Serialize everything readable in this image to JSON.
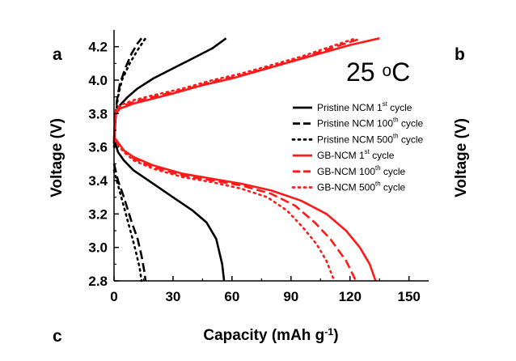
{
  "chart_data": {
    "type": "line",
    "title": "",
    "annotation": {
      "main": "25 ",
      "sup": "o",
      "tail": "C"
    },
    "panel_labels": {
      "a": "a",
      "b": "b",
      "c": "c"
    },
    "xlabel": {
      "main": "Capacity (mAh g",
      "sup": "-1",
      "tail": ")"
    },
    "ylabel": "Voltage (V)",
    "ylabel_right": "Voltage (V)",
    "xlim": [
      0,
      160
    ],
    "ylim": [
      2.8,
      4.3
    ],
    "x_ticks": [
      0,
      30,
      60,
      90,
      120,
      150
    ],
    "y_ticks": [
      2.8,
      3.0,
      3.2,
      3.4,
      3.6,
      3.8,
      4.0,
      4.2
    ],
    "x_tick_labels": [
      "0",
      "30",
      "60",
      "90",
      "120",
      "150"
    ],
    "y_tick_labels": [
      "2.8",
      "3.0",
      "3.2",
      "3.4",
      "3.6",
      "3.8",
      "4.0",
      "4.2"
    ],
    "grid": false,
    "legend_position": "right",
    "series": [
      {
        "name": {
          "main": "Pristine NCM 1",
          "sup": "st",
          "tail": " cycle"
        },
        "color": "#000000",
        "dash": "solid",
        "charge": [
          [
            0,
            3.62
          ],
          [
            0.5,
            3.72
          ],
          [
            1,
            3.8
          ],
          [
            3,
            3.85
          ],
          [
            7,
            3.9
          ],
          [
            12,
            3.95
          ],
          [
            20,
            4.01
          ],
          [
            30,
            4.07
          ],
          [
            40,
            4.13
          ],
          [
            50,
            4.19
          ],
          [
            57,
            4.25
          ]
        ],
        "discharge": [
          [
            0,
            3.65
          ],
          [
            2,
            3.57
          ],
          [
            5,
            3.52
          ],
          [
            10,
            3.46
          ],
          [
            20,
            3.38
          ],
          [
            30,
            3.3
          ],
          [
            40,
            3.22
          ],
          [
            47,
            3.15
          ],
          [
            52,
            3.05
          ],
          [
            55,
            2.9
          ],
          [
            56,
            2.8
          ]
        ]
      },
      {
        "name": {
          "main": "Pristine NCM 100",
          "sup": "th",
          "tail": " cycle"
        },
        "color": "#000000",
        "dash": "dash",
        "charge": [
          [
            0,
            3.62
          ],
          [
            0.5,
            3.76
          ],
          [
            1.5,
            3.88
          ],
          [
            3,
            3.98
          ],
          [
            6,
            4.08
          ],
          [
            9,
            4.16
          ],
          [
            12,
            4.22
          ],
          [
            14,
            4.25
          ]
        ],
        "discharge": [
          [
            0,
            3.5
          ],
          [
            2,
            3.4
          ],
          [
            5,
            3.3
          ],
          [
            9,
            3.15
          ],
          [
            12,
            3.05
          ],
          [
            14,
            2.95
          ],
          [
            15.5,
            2.85
          ],
          [
            16,
            2.8
          ]
        ]
      },
      {
        "name": {
          "main": "Pristine NCM 500",
          "sup": "th",
          "tail": " cycle"
        },
        "color": "#000000",
        "dash": "dot",
        "charge": [
          [
            0,
            3.6
          ],
          [
            0.5,
            3.75
          ],
          [
            2,
            3.9
          ],
          [
            4,
            4.0
          ],
          [
            8,
            4.1
          ],
          [
            12,
            4.18
          ],
          [
            16,
            4.25
          ]
        ],
        "discharge": [
          [
            0,
            3.46
          ],
          [
            3,
            3.33
          ],
          [
            6,
            3.2
          ],
          [
            9,
            3.07
          ],
          [
            11,
            2.98
          ],
          [
            13,
            2.88
          ],
          [
            14,
            2.8
          ]
        ]
      },
      {
        "name": {
          "main": "GB-NCM 1",
          "sup": "st",
          "tail": " cycle"
        },
        "color": "#ff1a1a",
        "dash": "solid",
        "charge": [
          [
            0,
            3.65
          ],
          [
            0.5,
            3.75
          ],
          [
            1,
            3.8
          ],
          [
            3,
            3.83
          ],
          [
            10,
            3.86
          ],
          [
            20,
            3.89
          ],
          [
            30,
            3.92
          ],
          [
            45,
            3.97
          ],
          [
            60,
            4.01
          ],
          [
            75,
            4.06
          ],
          [
            90,
            4.11
          ],
          [
            105,
            4.16
          ],
          [
            120,
            4.21
          ],
          [
            135,
            4.25
          ]
        ],
        "discharge": [
          [
            0,
            3.66
          ],
          [
            5,
            3.58
          ],
          [
            10,
            3.54
          ],
          [
            20,
            3.49
          ],
          [
            35,
            3.44
          ],
          [
            50,
            3.41
          ],
          [
            65,
            3.38
          ],
          [
            80,
            3.34
          ],
          [
            95,
            3.28
          ],
          [
            108,
            3.2
          ],
          [
            118,
            3.1
          ],
          [
            125,
            3.0
          ],
          [
            130,
            2.9
          ],
          [
            133,
            2.8
          ]
        ]
      },
      {
        "name": {
          "main": "GB-NCM 100",
          "sup": "th",
          "tail": " cycle"
        },
        "color": "#ff1a1a",
        "dash": "dash",
        "charge": [
          [
            0,
            3.65
          ],
          [
            0.5,
            3.76
          ],
          [
            1,
            3.81
          ],
          [
            3,
            3.84
          ],
          [
            10,
            3.87
          ],
          [
            20,
            3.9
          ],
          [
            35,
            3.94
          ],
          [
            50,
            3.99
          ],
          [
            65,
            4.03
          ],
          [
            80,
            4.08
          ],
          [
            95,
            4.13
          ],
          [
            110,
            4.19
          ],
          [
            126,
            4.25
          ]
        ],
        "discharge": [
          [
            0,
            3.65
          ],
          [
            5,
            3.58
          ],
          [
            10,
            3.53
          ],
          [
            20,
            3.48
          ],
          [
            35,
            3.43
          ],
          [
            50,
            3.4
          ],
          [
            65,
            3.37
          ],
          [
            80,
            3.32
          ],
          [
            92,
            3.25
          ],
          [
            102,
            3.15
          ],
          [
            110,
            3.05
          ],
          [
            118,
            2.92
          ],
          [
            123,
            2.8
          ]
        ]
      },
      {
        "name": {
          "main": "GB-NCM 500",
          "sup": "th",
          "tail": " cycle"
        },
        "color": "#ff1a1a",
        "dash": "dot",
        "charge": [
          [
            0,
            3.64
          ],
          [
            0.5,
            3.76
          ],
          [
            1,
            3.82
          ],
          [
            3,
            3.85
          ],
          [
            10,
            3.88
          ],
          [
            20,
            3.91
          ],
          [
            35,
            3.95
          ],
          [
            50,
            4.0
          ],
          [
            65,
            4.04
          ],
          [
            80,
            4.09
          ],
          [
            95,
            4.14
          ],
          [
            110,
            4.2
          ],
          [
            123,
            4.25
          ]
        ],
        "discharge": [
          [
            0,
            3.64
          ],
          [
            5,
            3.57
          ],
          [
            10,
            3.52
          ],
          [
            20,
            3.47
          ],
          [
            35,
            3.42
          ],
          [
            50,
            3.39
          ],
          [
            65,
            3.35
          ],
          [
            78,
            3.3
          ],
          [
            88,
            3.22
          ],
          [
            96,
            3.12
          ],
          [
            103,
            3.02
          ],
          [
            108,
            2.92
          ],
          [
            112,
            2.8
          ]
        ]
      }
    ]
  }
}
